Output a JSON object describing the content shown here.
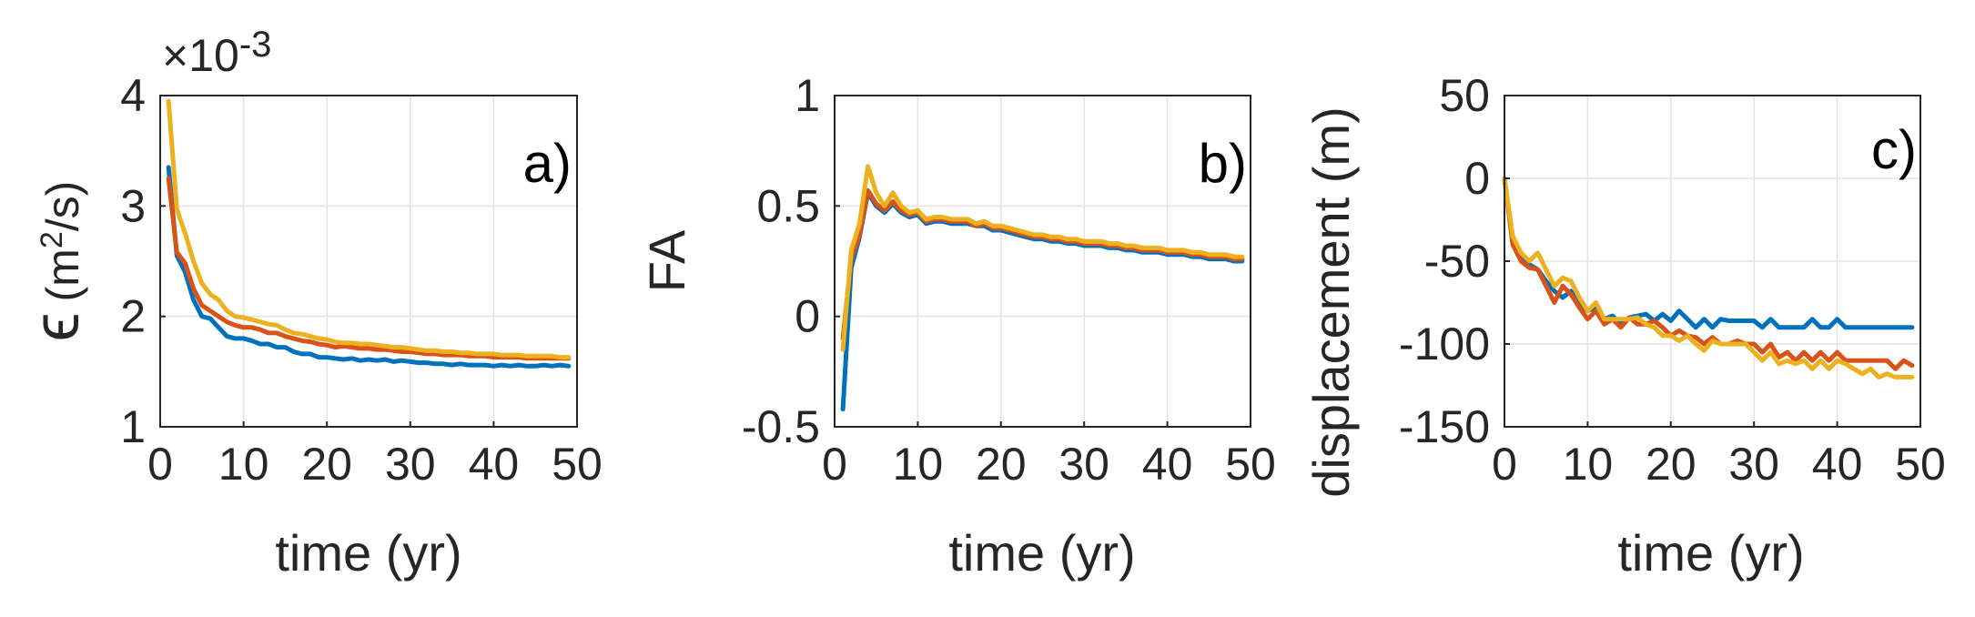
{
  "chart_data": [
    {
      "type": "line",
      "panel_label": "a)",
      "xlabel": "time (yr)",
      "ylabel_symbol": "ϵ",
      "ylabel_unit_open": "(m",
      "ylabel_unit_sup": "2",
      "ylabel_unit_close": "/s)",
      "exponent_label": "×10",
      "exponent_power": "-3",
      "xlim": [
        0,
        50
      ],
      "ylim": [
        1,
        4
      ],
      "xticks": [
        0,
        10,
        20,
        30,
        40,
        50
      ],
      "yticks": [
        1,
        2,
        3,
        4
      ],
      "xtick_labels": [
        "0",
        "10",
        "20",
        "30",
        "40",
        "50"
      ],
      "ytick_labels": [
        "1",
        "2",
        "3",
        "4"
      ],
      "grid": true,
      "x": [
        1,
        2,
        3,
        4,
        5,
        6,
        7,
        8,
        9,
        10,
        11,
        12,
        13,
        14,
        15,
        16,
        17,
        18,
        19,
        20,
        21,
        22,
        23,
        24,
        25,
        26,
        27,
        28,
        29,
        30,
        31,
        32,
        33,
        34,
        35,
        36,
        37,
        38,
        39,
        40,
        41,
        42,
        43,
        44,
        45,
        46,
        47,
        48,
        49
      ],
      "series": [
        {
          "color": "#0072BD",
          "values": [
            3.35,
            2.55,
            2.4,
            2.15,
            2.0,
            1.98,
            1.9,
            1.82,
            1.8,
            1.8,
            1.78,
            1.75,
            1.75,
            1.72,
            1.72,
            1.68,
            1.66,
            1.66,
            1.63,
            1.63,
            1.62,
            1.61,
            1.62,
            1.6,
            1.61,
            1.6,
            1.61,
            1.59,
            1.6,
            1.59,
            1.58,
            1.58,
            1.57,
            1.57,
            1.56,
            1.57,
            1.56,
            1.56,
            1.56,
            1.55,
            1.56,
            1.55,
            1.56,
            1.55,
            1.55,
            1.56,
            1.55,
            1.56,
            1.55
          ]
        },
        {
          "color": "#D95319",
          "values": [
            3.25,
            2.58,
            2.48,
            2.25,
            2.1,
            2.05,
            2.0,
            1.95,
            1.92,
            1.9,
            1.9,
            1.88,
            1.85,
            1.85,
            1.82,
            1.8,
            1.78,
            1.77,
            1.75,
            1.74,
            1.72,
            1.73,
            1.72,
            1.71,
            1.71,
            1.7,
            1.7,
            1.69,
            1.68,
            1.68,
            1.67,
            1.66,
            1.66,
            1.65,
            1.65,
            1.65,
            1.64,
            1.64,
            1.64,
            1.63,
            1.63,
            1.63,
            1.63,
            1.62,
            1.62,
            1.62,
            1.62,
            1.62,
            1.62
          ]
        },
        {
          "color": "#EDB120",
          "values": [
            3.95,
            2.97,
            2.75,
            2.5,
            2.3,
            2.2,
            2.15,
            2.05,
            2.0,
            1.99,
            1.97,
            1.95,
            1.93,
            1.92,
            1.88,
            1.85,
            1.84,
            1.82,
            1.8,
            1.79,
            1.77,
            1.76,
            1.76,
            1.75,
            1.75,
            1.74,
            1.73,
            1.72,
            1.72,
            1.71,
            1.7,
            1.69,
            1.69,
            1.68,
            1.68,
            1.67,
            1.67,
            1.66,
            1.66,
            1.66,
            1.65,
            1.65,
            1.65,
            1.64,
            1.64,
            1.64,
            1.64,
            1.63,
            1.63
          ]
        }
      ]
    },
    {
      "type": "line",
      "panel_label": "b)",
      "xlabel": "time (yr)",
      "ylabel": "FA",
      "xlim": [
        0,
        50
      ],
      "ylim": [
        -0.5,
        1
      ],
      "xticks": [
        0,
        10,
        20,
        30,
        40,
        50
      ],
      "yticks": [
        -0.5,
        0,
        0.5,
        1
      ],
      "xtick_labels": [
        "0",
        "10",
        "20",
        "30",
        "40",
        "50"
      ],
      "ytick_labels": [
        "-0.5",
        "0",
        "0.5",
        "1"
      ],
      "grid": true,
      "x": [
        1,
        2,
        3,
        4,
        5,
        6,
        7,
        8,
        9,
        10,
        11,
        12,
        13,
        14,
        15,
        16,
        17,
        18,
        19,
        20,
        21,
        22,
        23,
        24,
        25,
        26,
        27,
        28,
        29,
        30,
        31,
        32,
        33,
        34,
        35,
        36,
        37,
        38,
        39,
        40,
        41,
        42,
        43,
        44,
        45,
        46,
        47,
        48,
        49
      ],
      "series": [
        {
          "color": "#0072BD",
          "values": [
            -0.42,
            0.22,
            0.36,
            0.56,
            0.5,
            0.47,
            0.51,
            0.47,
            0.45,
            0.46,
            0.42,
            0.43,
            0.43,
            0.42,
            0.42,
            0.42,
            0.41,
            0.41,
            0.39,
            0.39,
            0.38,
            0.37,
            0.36,
            0.35,
            0.35,
            0.34,
            0.34,
            0.33,
            0.33,
            0.32,
            0.32,
            0.32,
            0.31,
            0.31,
            0.3,
            0.3,
            0.29,
            0.29,
            0.29,
            0.28,
            0.28,
            0.28,
            0.27,
            0.27,
            0.26,
            0.26,
            0.26,
            0.25,
            0.25
          ]
        },
        {
          "color": "#D95319",
          "values": [
            -0.1,
            0.26,
            0.37,
            0.57,
            0.51,
            0.48,
            0.52,
            0.48,
            0.46,
            0.47,
            0.43,
            0.44,
            0.44,
            0.43,
            0.43,
            0.43,
            0.41,
            0.42,
            0.4,
            0.4,
            0.39,
            0.38,
            0.37,
            0.36,
            0.36,
            0.35,
            0.35,
            0.34,
            0.34,
            0.33,
            0.33,
            0.33,
            0.32,
            0.32,
            0.31,
            0.31,
            0.3,
            0.3,
            0.3,
            0.29,
            0.29,
            0.29,
            0.28,
            0.28,
            0.27,
            0.27,
            0.27,
            0.26,
            0.26
          ]
        },
        {
          "color": "#EDB120",
          "values": [
            -0.15,
            0.3,
            0.42,
            0.68,
            0.56,
            0.5,
            0.56,
            0.5,
            0.47,
            0.48,
            0.44,
            0.45,
            0.45,
            0.44,
            0.44,
            0.44,
            0.42,
            0.43,
            0.41,
            0.41,
            0.4,
            0.39,
            0.38,
            0.37,
            0.37,
            0.36,
            0.36,
            0.35,
            0.35,
            0.34,
            0.34,
            0.34,
            0.33,
            0.33,
            0.32,
            0.32,
            0.31,
            0.31,
            0.31,
            0.3,
            0.3,
            0.3,
            0.29,
            0.29,
            0.28,
            0.28,
            0.28,
            0.27,
            0.27
          ]
        }
      ]
    },
    {
      "type": "line",
      "panel_label": "c)",
      "xlabel": "time (yr)",
      "ylabel": "displacement (m)",
      "xlim": [
        0,
        50
      ],
      "ylim": [
        -150,
        50
      ],
      "xticks": [
        0,
        10,
        20,
        30,
        40,
        50
      ],
      "yticks": [
        -150,
        -100,
        -50,
        0,
        50
      ],
      "xtick_labels": [
        "0",
        "10",
        "20",
        "30",
        "40",
        "50"
      ],
      "ytick_labels": [
        "-150",
        "-100",
        "-50",
        "0",
        "50"
      ],
      "grid": true,
      "x": [
        0,
        1,
        2,
        3,
        4,
        5,
        6,
        7,
        8,
        9,
        10,
        11,
        12,
        13,
        14,
        15,
        16,
        17,
        18,
        19,
        20,
        21,
        22,
        23,
        24,
        25,
        26,
        27,
        28,
        29,
        30,
        31,
        32,
        33,
        34,
        35,
        36,
        37,
        38,
        39,
        40,
        41,
        42,
        43,
        44,
        45,
        46,
        47,
        48,
        49
      ],
      "series": [
        {
          "color": "#0072BD",
          "values": [
            0,
            -38,
            -48,
            -52,
            -55,
            -62,
            -68,
            -72,
            -68,
            -75,
            -80,
            -78,
            -85,
            -83,
            -88,
            -84,
            -83,
            -82,
            -86,
            -82,
            -86,
            -80,
            -85,
            -90,
            -85,
            -90,
            -85,
            -86,
            -86,
            -86,
            -86,
            -90,
            -85,
            -90,
            -90,
            -90,
            -90,
            -85,
            -90,
            -90,
            -85,
            -90,
            -90,
            -90,
            -90,
            -90,
            -90,
            -90,
            -90,
            -90
          ]
        },
        {
          "color": "#D95319",
          "values": [
            0,
            -40,
            -50,
            -54,
            -55,
            -65,
            -75,
            -65,
            -70,
            -78,
            -85,
            -80,
            -88,
            -85,
            -90,
            -84,
            -88,
            -88,
            -86,
            -90,
            -95,
            -92,
            -95,
            -96,
            -100,
            -96,
            -100,
            -100,
            -98,
            -100,
            -100,
            -105,
            -100,
            -108,
            -105,
            -110,
            -105,
            -110,
            -105,
            -110,
            -105,
            -110,
            -110,
            -110,
            -110,
            -110,
            -110,
            -115,
            -110,
            -113
          ]
        },
        {
          "color": "#EDB120",
          "values": [
            0,
            -35,
            -45,
            -50,
            -45,
            -55,
            -65,
            -60,
            -62,
            -72,
            -80,
            -75,
            -85,
            -85,
            -85,
            -85,
            -84,
            -88,
            -90,
            -95,
            -95,
            -98,
            -95,
            -100,
            -104,
            -98,
            -100,
            -100,
            -100,
            -100,
            -105,
            -110,
            -105,
            -112,
            -110,
            -112,
            -110,
            -115,
            -110,
            -115,
            -110,
            -112,
            -115,
            -118,
            -115,
            -120,
            -118,
            -120,
            -120,
            -120
          ]
        }
      ]
    }
  ]
}
